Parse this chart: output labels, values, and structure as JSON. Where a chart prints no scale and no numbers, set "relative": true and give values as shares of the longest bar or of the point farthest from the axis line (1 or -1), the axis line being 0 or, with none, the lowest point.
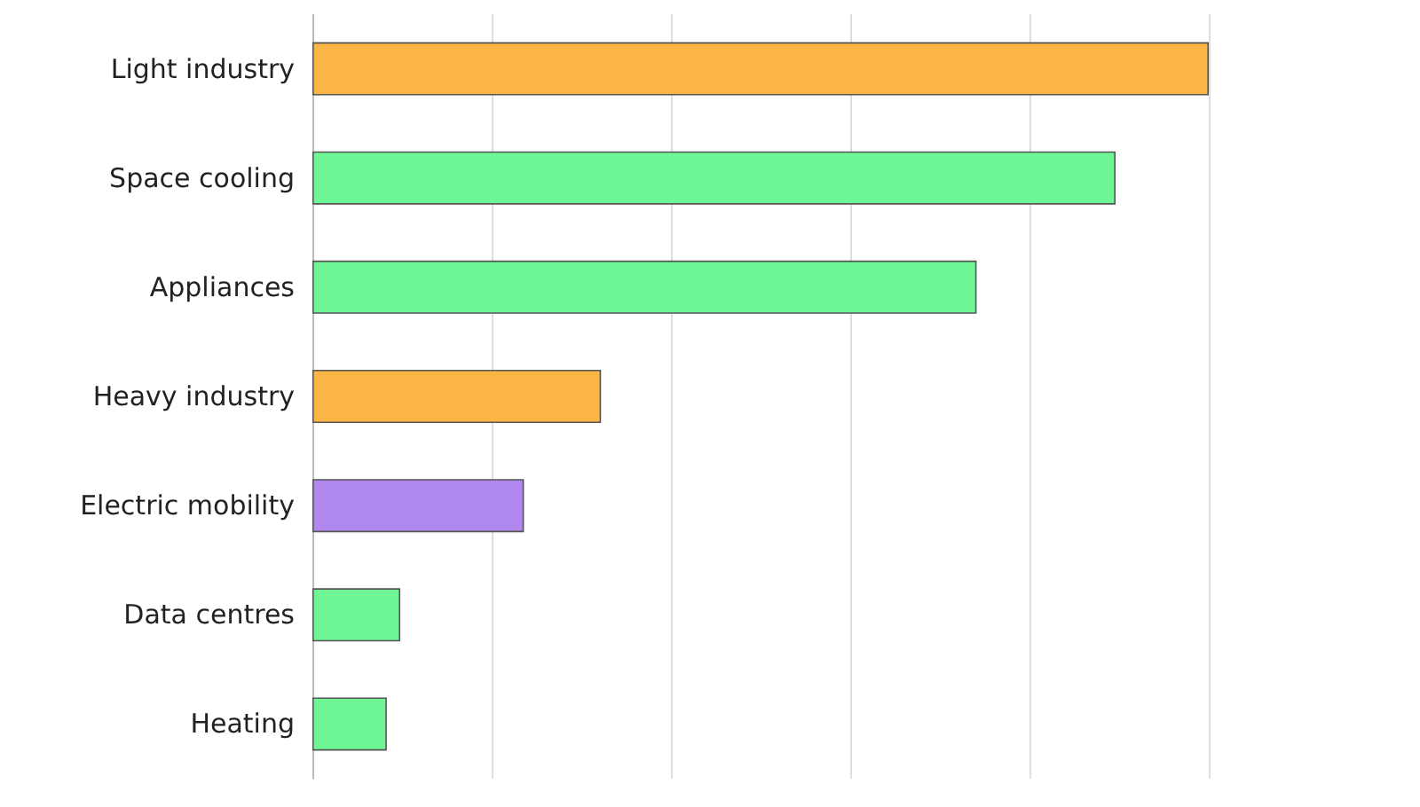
{
  "chart_data": {
    "type": "bar",
    "orientation": "horizontal",
    "relative": true,
    "categories": [
      "Light industry",
      "Space cooling",
      "Appliances",
      "Heavy industry",
      "Electric mobility",
      "Data centres",
      "Heating"
    ],
    "values": [
      1,
      0.896,
      0.741,
      0.322,
      0.236,
      0.098,
      0.083
    ],
    "colors": [
      "#fbb545",
      "#6ef595",
      "#6ef595",
      "#fbb545",
      "#b088ee",
      "#6ef595",
      "#6ef595"
    ],
    "grid": "x"
  }
}
